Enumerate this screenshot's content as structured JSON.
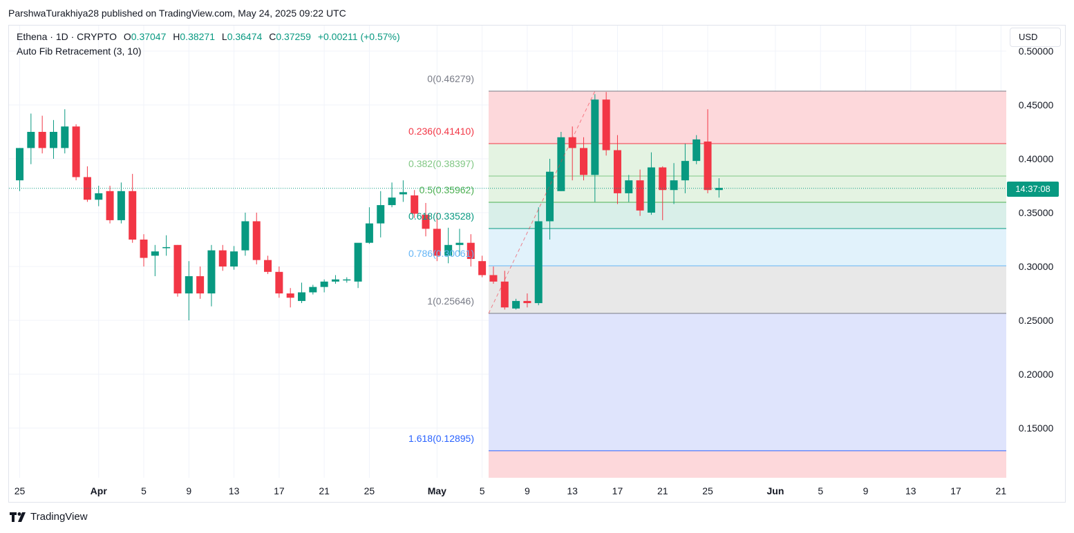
{
  "publish_line": "ParshwaTurakhiya28 published on TradingView.com, May 24, 2025 09:22 UTC",
  "legend": {
    "symbol": "Ethena · 1D · CRYPTO",
    "o_label": "O",
    "o_value": "0.37047",
    "h_label": "H",
    "h_value": "0.38271",
    "l_label": "L",
    "l_value": "0.36474",
    "c_label": "C",
    "c_value": "0.37259",
    "change": "+0.00211 (+0.57%)",
    "indicator": "Auto Fib Retracement (3, 10)"
  },
  "currency_button": "USD",
  "countdown": "14:37:08",
  "brand": "TradingView",
  "colors": {
    "up": "#089981",
    "down": "#f23645",
    "grid": "#f0f3fa",
    "text": "#131722"
  },
  "chart_data": {
    "type": "candlestick",
    "ylim": [
      0.095,
      0.51
    ],
    "y_ticks": [
      "0.50000",
      "0.45000",
      "0.40000",
      "0.35000",
      "0.30000",
      "0.25000",
      "0.20000",
      "0.15000"
    ],
    "x_ticks": [
      "25",
      "Apr",
      "5",
      "9",
      "13",
      "17",
      "21",
      "25",
      "May",
      "5",
      "9",
      "13",
      "17",
      "21",
      "25",
      "Jun",
      "5",
      "9",
      "13",
      "17",
      "21"
    ],
    "last_price": 0.37259,
    "candles": [
      {
        "o": 0.38,
        "h": 0.41,
        "l": 0.37,
        "c": 0.41
      },
      {
        "o": 0.41,
        "h": 0.442,
        "l": 0.395,
        "c": 0.425
      },
      {
        "o": 0.425,
        "h": 0.44,
        "l": 0.405,
        "c": 0.41
      },
      {
        "o": 0.41,
        "h": 0.436,
        "l": 0.4,
        "c": 0.425
      },
      {
        "o": 0.41,
        "h": 0.446,
        "l": 0.405,
        "c": 0.43
      },
      {
        "o": 0.43,
        "h": 0.432,
        "l": 0.38,
        "c": 0.383
      },
      {
        "o": 0.383,
        "h": 0.393,
        "l": 0.36,
        "c": 0.362
      },
      {
        "o": 0.362,
        "h": 0.375,
        "l": 0.356,
        "c": 0.368
      },
      {
        "o": 0.37,
        "h": 0.375,
        "l": 0.34,
        "c": 0.343
      },
      {
        "o": 0.343,
        "h": 0.378,
        "l": 0.34,
        "c": 0.37
      },
      {
        "o": 0.37,
        "h": 0.386,
        "l": 0.322,
        "c": 0.325
      },
      {
        "o": 0.325,
        "h": 0.33,
        "l": 0.3,
        "c": 0.308
      },
      {
        "o": 0.31,
        "h": 0.32,
        "l": 0.291,
        "c": 0.314
      },
      {
        "o": 0.317,
        "h": 0.329,
        "l": 0.31,
        "c": 0.318
      },
      {
        "o": 0.32,
        "h": 0.32,
        "l": 0.272,
        "c": 0.275
      },
      {
        "o": 0.275,
        "h": 0.305,
        "l": 0.25,
        "c": 0.291
      },
      {
        "o": 0.291,
        "h": 0.3,
        "l": 0.27,
        "c": 0.275
      },
      {
        "o": 0.275,
        "h": 0.32,
        "l": 0.263,
        "c": 0.315
      },
      {
        "o": 0.315,
        "h": 0.32,
        "l": 0.296,
        "c": 0.3
      },
      {
        "o": 0.3,
        "h": 0.319,
        "l": 0.297,
        "c": 0.314
      },
      {
        "o": 0.315,
        "h": 0.35,
        "l": 0.31,
        "c": 0.342
      },
      {
        "o": 0.342,
        "h": 0.35,
        "l": 0.302,
        "c": 0.306
      },
      {
        "o": 0.306,
        "h": 0.31,
        "l": 0.293,
        "c": 0.295
      },
      {
        "o": 0.295,
        "h": 0.3,
        "l": 0.271,
        "c": 0.275
      },
      {
        "o": 0.275,
        "h": 0.28,
        "l": 0.262,
        "c": 0.271
      },
      {
        "o": 0.268,
        "h": 0.285,
        "l": 0.266,
        "c": 0.276
      },
      {
        "o": 0.276,
        "h": 0.283,
        "l": 0.274,
        "c": 0.281
      },
      {
        "o": 0.281,
        "h": 0.288,
        "l": 0.276,
        "c": 0.286
      },
      {
        "o": 0.286,
        "h": 0.292,
        "l": 0.284,
        "c": 0.288
      },
      {
        "o": 0.288,
        "h": 0.29,
        "l": 0.285,
        "c": 0.288
      },
      {
        "o": 0.286,
        "h": 0.32,
        "l": 0.28,
        "c": 0.322
      },
      {
        "o": 0.322,
        "h": 0.355,
        "l": 0.321,
        "c": 0.34
      },
      {
        "o": 0.34,
        "h": 0.37,
        "l": 0.327,
        "c": 0.357
      },
      {
        "o": 0.357,
        "h": 0.378,
        "l": 0.355,
        "c": 0.364
      },
      {
        "o": 0.367,
        "h": 0.38,
        "l": 0.36,
        "c": 0.369
      },
      {
        "o": 0.366,
        "h": 0.371,
        "l": 0.345,
        "c": 0.349
      },
      {
        "o": 0.348,
        "h": 0.359,
        "l": 0.328,
        "c": 0.335
      },
      {
        "o": 0.335,
        "h": 0.35,
        "l": 0.305,
        "c": 0.31
      },
      {
        "o": 0.31,
        "h": 0.336,
        "l": 0.303,
        "c": 0.32
      },
      {
        "o": 0.32,
        "h": 0.335,
        "l": 0.31,
        "c": 0.322
      },
      {
        "o": 0.322,
        "h": 0.33,
        "l": 0.3,
        "c": 0.307
      },
      {
        "o": 0.305,
        "h": 0.31,
        "l": 0.29,
        "c": 0.292
      },
      {
        "o": 0.292,
        "h": 0.3,
        "l": 0.284,
        "c": 0.286
      },
      {
        "o": 0.286,
        "h": 0.296,
        "l": 0.26,
        "c": 0.262
      },
      {
        "o": 0.261,
        "h": 0.27,
        "l": 0.26,
        "c": 0.268
      },
      {
        "o": 0.268,
        "h": 0.275,
        "l": 0.262,
        "c": 0.266
      },
      {
        "o": 0.266,
        "h": 0.355,
        "l": 0.264,
        "c": 0.342
      },
      {
        "o": 0.342,
        "h": 0.4,
        "l": 0.325,
        "c": 0.388
      },
      {
        "o": 0.37,
        "h": 0.425,
        "l": 0.37,
        "c": 0.42
      },
      {
        "o": 0.42,
        "h": 0.43,
        "l": 0.38,
        "c": 0.41
      },
      {
        "o": 0.41,
        "h": 0.42,
        "l": 0.38,
        "c": 0.385
      },
      {
        "o": 0.385,
        "h": 0.46,
        "l": 0.36,
        "c": 0.455
      },
      {
        "o": 0.455,
        "h": 0.462,
        "l": 0.403,
        "c": 0.408
      },
      {
        "o": 0.408,
        "h": 0.422,
        "l": 0.358,
        "c": 0.368
      },
      {
        "o": 0.368,
        "h": 0.385,
        "l": 0.36,
        "c": 0.38
      },
      {
        "o": 0.38,
        "h": 0.39,
        "l": 0.347,
        "c": 0.352
      },
      {
        "o": 0.35,
        "h": 0.406,
        "l": 0.348,
        "c": 0.392
      },
      {
        "o": 0.392,
        "h": 0.393,
        "l": 0.343,
        "c": 0.371
      },
      {
        "o": 0.371,
        "h": 0.396,
        "l": 0.358,
        "c": 0.38
      },
      {
        "o": 0.38,
        "h": 0.414,
        "l": 0.368,
        "c": 0.398
      },
      {
        "o": 0.398,
        "h": 0.422,
        "l": 0.395,
        "c": 0.418
      },
      {
        "o": 0.416,
        "h": 0.446,
        "l": 0.368,
        "c": 0.371
      },
      {
        "o": 0.371,
        "h": 0.382,
        "l": 0.364,
        "c": 0.373
      }
    ],
    "fib_levels": [
      {
        "ratio": "0",
        "price": "0.46279",
        "value": 0.46279,
        "label": "0(0.46279)",
        "color": "#787b86"
      },
      {
        "ratio": "0.236",
        "price": "0.41410",
        "value": 0.4141,
        "label": "0.236(0.41410)",
        "color": "#f23645"
      },
      {
        "ratio": "0.382",
        "price": "0.38397",
        "value": 0.38397,
        "label": "0.382(0.38397)",
        "color": "#81c784"
      },
      {
        "ratio": "0.5",
        "price": "0.35962",
        "value": 0.35962,
        "label": "0.5(0.35962)",
        "color": "#4caf50"
      },
      {
        "ratio": "0.618",
        "price": "0.33528",
        "value": 0.33528,
        "label": "0.618(0.33528)",
        "color": "#089981"
      },
      {
        "ratio": "0.786",
        "price": "0.30061",
        "value": 0.30061,
        "label": "0.786(0.30061)",
        "color": "#64b5f6"
      },
      {
        "ratio": "1",
        "price": "0.25646",
        "value": 0.25646,
        "label": "1(0.25646)",
        "color": "#787b86"
      },
      {
        "ratio": "1.618",
        "price": "0.12895",
        "value": 0.12895,
        "label": "1.618(0.12895)",
        "color": "#2962ff"
      }
    ]
  }
}
